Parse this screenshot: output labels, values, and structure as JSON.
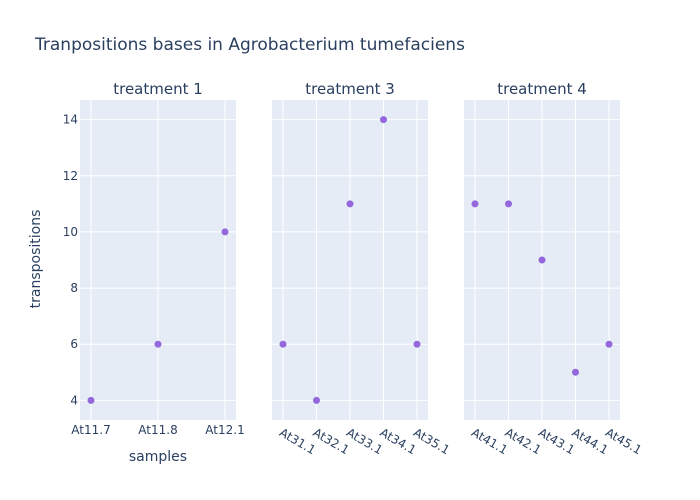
{
  "chart_data": {
    "type": "scatter",
    "title": "Tranpositions bases in Agrobacterium tumefaciens",
    "xlabel": "samples",
    "ylabel": "transpositions",
    "ylim": [
      3.3,
      14.7
    ],
    "yticks": [
      4,
      6,
      8,
      10,
      12,
      14
    ],
    "grid": true,
    "marker_color": "#9467dd",
    "plot_bg": "#e5ecf6",
    "grid_color": "#ffffff",
    "text_color": "#2a3f5f",
    "facets": [
      {
        "name": "treatment 1",
        "categories": [
          "At11.7",
          "At11.8",
          "At12.1"
        ],
        "values": [
          4,
          6,
          10
        ],
        "tick_rotation": 0
      },
      {
        "name": "treatment 3",
        "categories": [
          "At31.1",
          "At32.1",
          "At33.1",
          "At34.1",
          "At35.1"
        ],
        "values": [
          6,
          4,
          11,
          14,
          6
        ],
        "tick_rotation": 30
      },
      {
        "name": "treatment 4",
        "categories": [
          "At41.1",
          "At42.1",
          "At43.1",
          "At44.1",
          "At45.1"
        ],
        "values": [
          11,
          11,
          9,
          5,
          6
        ],
        "tick_rotation": 30
      }
    ]
  }
}
